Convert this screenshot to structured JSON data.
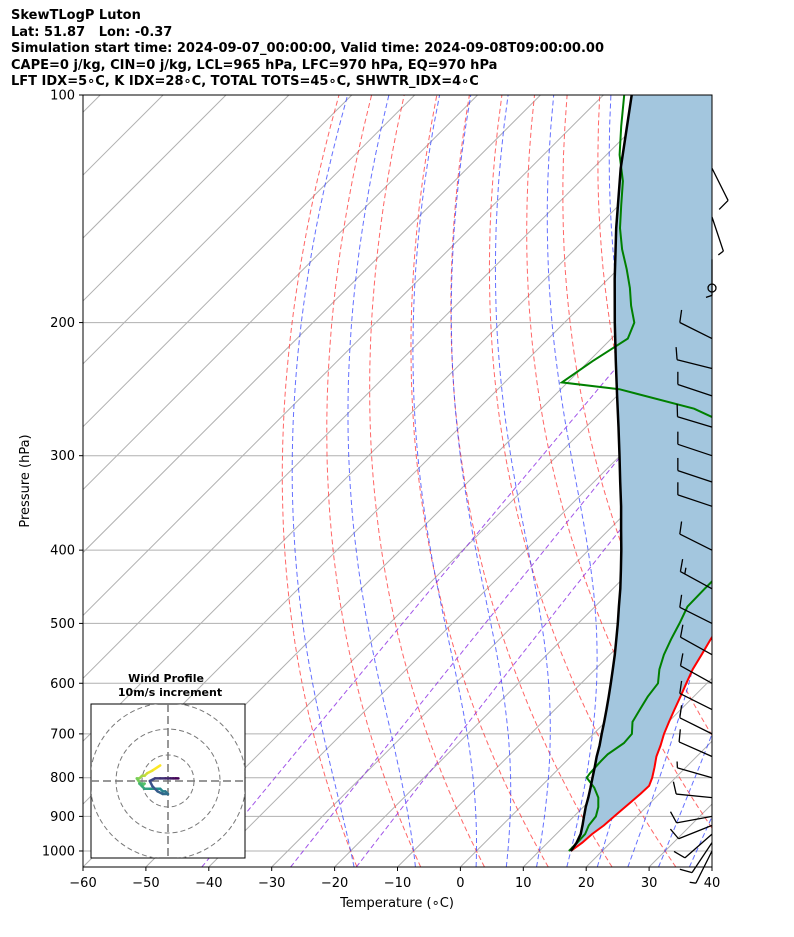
{
  "header": {
    "line1": "SkewTLogP Luton",
    "line2": "Lat: 51.87   Lon: -0.37",
    "line3": "Simulation start time: 2024-09-07_00:00:00, Valid time: 2024-09-08T09:00:00.00",
    "line4": "CAPE=0 j/kg, CIN=0 j/kg, LCL=965 hPa, LFC=970 hPa, EQ=970 hPa",
    "line5": "LFT IDX=5∘C, K IDX=28∘C, TOTAL TOTS=45∘C, SHWTR_IDX=4∘C"
  },
  "colors": {
    "temperature": "#ff0000",
    "dewpoint": "#008000",
    "parcel": "#000000",
    "cape_fill": "#a3c6de",
    "dry_adiabat": "#ff4040",
    "moist_adiabat": "#3040ff",
    "mixing_ratio": "#8a2be2",
    "isotherm": "#b0b0b0",
    "isobar": "#b0b0b0"
  },
  "chart_data": {
    "type": "skewt",
    "xlabel": "Temperature (∘C)",
    "ylabel": "Pressure (hPa)",
    "xlim": [
      -60,
      40
    ],
    "ylim": [
      1050,
      100
    ],
    "y_scale": "log",
    "x_ticks": [
      "−60",
      "−50",
      "−40",
      "−30",
      "−20",
      "−10",
      "0",
      "10",
      "20",
      "30",
      "40"
    ],
    "x_tick_values": [
      -60,
      -50,
      -40,
      -30,
      -20,
      -10,
      0,
      10,
      20,
      30,
      40
    ],
    "y_ticks": [
      "100",
      "200",
      "300",
      "400",
      "500",
      "600",
      "700",
      "800",
      "900",
      "1000"
    ],
    "y_tick_values": [
      100,
      200,
      300,
      400,
      500,
      600,
      700,
      800,
      900,
      1000
    ],
    "grid": true,
    "temperature": [
      [
        1000,
        15
      ],
      [
        975,
        15.5
      ],
      [
        950,
        15.7
      ],
      [
        925,
        16.2
      ],
      [
        900,
        16.4
      ],
      [
        880,
        16.6
      ],
      [
        860,
        16.8
      ],
      [
        840,
        17
      ],
      [
        820,
        17.1
      ],
      [
        800,
        16.3
      ],
      [
        775,
        15
      ],
      [
        750,
        13.6
      ],
      [
        725,
        12.5
      ],
      [
        700,
        11.2
      ],
      [
        675,
        10.1
      ],
      [
        650,
        9
      ],
      [
        625,
        7.9
      ],
      [
        600,
        6.7
      ],
      [
        575,
        5.5
      ],
      [
        550,
        4.6
      ],
      [
        525,
        3.6
      ],
      [
        500,
        2.7
      ],
      [
        475,
        1.3
      ],
      [
        450,
        -0.4
      ],
      [
        425,
        -2.2
      ],
      [
        400,
        -3.7
      ],
      [
        375,
        -6.6
      ],
      [
        350,
        -9.1
      ],
      [
        325,
        -11.6
      ],
      [
        310,
        -14.1
      ],
      [
        300,
        -15.4
      ],
      [
        290,
        -15.6
      ],
      [
        285,
        -15.6
      ],
      [
        275,
        -14.3
      ],
      [
        265,
        -13.5
      ],
      [
        250,
        -14.7
      ],
      [
        235,
        -14.5
      ],
      [
        225,
        -15.4
      ],
      [
        210,
        -13.9
      ],
      [
        200,
        -14.3
      ],
      [
        190,
        -14.8
      ],
      [
        180,
        -15.5
      ],
      [
        170,
        -16.5
      ],
      [
        160,
        -18.5
      ],
      [
        150,
        -21.2
      ],
      [
        140,
        -23.7
      ],
      [
        130,
        -26.3
      ],
      [
        120,
        -27.5
      ],
      [
        110,
        -30.4
      ],
      [
        105,
        -30.9
      ],
      [
        100,
        -33
      ]
    ],
    "dewpoint": [
      [
        1000,
        14.7
      ],
      [
        975,
        14.7
      ],
      [
        950,
        14.6
      ],
      [
        925,
        13.8
      ],
      [
        900,
        13.5
      ],
      [
        875,
        12.4
      ],
      [
        850,
        10.9
      ],
      [
        825,
        8.7
      ],
      [
        800,
        5.9
      ],
      [
        790,
        5.7
      ],
      [
        775,
        5.6
      ],
      [
        760,
        5.5
      ],
      [
        745,
        5.5
      ],
      [
        720,
        6.3
      ],
      [
        700,
        6.1
      ],
      [
        675,
        4.3
      ],
      [
        650,
        3.5
      ],
      [
        625,
        2.7
      ],
      [
        600,
        2.2
      ],
      [
        575,
        0.2
      ],
      [
        550,
        -1.4
      ],
      [
        525,
        -2.7
      ],
      [
        500,
        -3.9
      ],
      [
        475,
        -5.3
      ],
      [
        450,
        -5.4
      ],
      [
        435,
        -5.4
      ],
      [
        420,
        -6.9
      ],
      [
        400,
        -9.1
      ],
      [
        375,
        -12.1
      ],
      [
        350,
        -14.8
      ],
      [
        330,
        -16.5
      ],
      [
        310,
        -18.8
      ],
      [
        295,
        -20.7
      ],
      [
        275,
        -26.5
      ],
      [
        260,
        -35.7
      ],
      [
        245,
        -50.7
      ],
      [
        240,
        -60.9
      ],
      [
        225,
        -59.4
      ],
      [
        210,
        -57.4
      ],
      [
        200,
        -58.9
      ],
      [
        190,
        -62.1
      ],
      [
        180,
        -65.1
      ],
      [
        170,
        -68.6
      ],
      [
        160,
        -72.5
      ],
      [
        150,
        -76.2
      ],
      [
        140,
        -79.6
      ],
      [
        130,
        -83.2
      ],
      [
        120,
        -87.9
      ],
      [
        110,
        -92.2
      ],
      [
        100,
        -96.7
      ]
    ],
    "parcel": [
      [
        1000,
        15
      ],
      [
        975,
        14.6
      ],
      [
        950,
        13.9
      ],
      [
        925,
        12.8
      ],
      [
        900,
        11.6
      ],
      [
        875,
        10.4
      ],
      [
        850,
        9.3
      ],
      [
        825,
        8.1
      ],
      [
        800,
        6.8
      ],
      [
        775,
        5.5
      ],
      [
        750,
        4.1
      ],
      [
        725,
        2.8
      ],
      [
        700,
        1.3
      ],
      [
        675,
        -0.2
      ],
      [
        650,
        -1.8
      ],
      [
        625,
        -3.5
      ],
      [
        600,
        -5.3
      ],
      [
        575,
        -7.2
      ],
      [
        550,
        -9.2
      ],
      [
        525,
        -11.4
      ],
      [
        500,
        -13.7
      ],
      [
        475,
        -16.2
      ],
      [
        450,
        -18.8
      ],
      [
        425,
        -21.7
      ],
      [
        400,
        -24.8
      ],
      [
        375,
        -28.2
      ],
      [
        350,
        -31.8
      ],
      [
        325,
        -35.8
      ],
      [
        300,
        -40.1
      ],
      [
        275,
        -44.8
      ],
      [
        250,
        -50
      ],
      [
        225,
        -55.7
      ],
      [
        200,
        -62
      ],
      [
        175,
        -69
      ],
      [
        150,
        -76.8
      ],
      [
        125,
        -85.6
      ],
      [
        100,
        -95.5
      ]
    ],
    "dry_adiabats_theta_c": [
      -20,
      -10,
      0,
      10,
      20,
      30,
      40,
      50,
      60,
      70,
      80,
      90,
      100,
      110
    ],
    "moist_adiabats_start_c": [
      -20,
      -10,
      0,
      5,
      10,
      15,
      20,
      25,
      30,
      35,
      40
    ],
    "mixing_ratios_gkg": [
      0.1,
      0.4,
      1
    ],
    "wind_barbs": [
      {
        "p": 1000,
        "u": 3,
        "v": 6
      },
      {
        "p": 975,
        "u": 6,
        "v": 9
      },
      {
        "p": 950,
        "u": 8,
        "v": 7
      },
      {
        "p": 925,
        "u": 10,
        "v": 4
      },
      {
        "p": 900,
        "u": 11,
        "v": 2
      },
      {
        "p": 850,
        "u": 10,
        "v": -1
      },
      {
        "p": 800,
        "u": 7,
        "v": -2
      },
      {
        "p": 750,
        "u": 9,
        "v": -4
      },
      {
        "p": 700,
        "u": 10,
        "v": -5
      },
      {
        "p": 650,
        "u": 10,
        "v": -5
      },
      {
        "p": 600,
        "u": 9,
        "v": -5
      },
      {
        "p": 550,
        "u": 9,
        "v": -5
      },
      {
        "p": 500,
        "u": 10,
        "v": -5
      },
      {
        "p": 450,
        "u": 11,
        "v": -6
      },
      {
        "p": 400,
        "u": 10,
        "v": -5
      },
      {
        "p": 350,
        "u": 9,
        "v": -3
      },
      {
        "p": 325,
        "u": 9,
        "v": -3
      },
      {
        "p": 300,
        "u": 9,
        "v": -3
      },
      {
        "p": 275,
        "u": 10,
        "v": -3
      },
      {
        "p": 250,
        "u": 9,
        "v": -3
      },
      {
        "p": 230,
        "u": 8,
        "v": -2
      },
      {
        "p": 210,
        "u": 8,
        "v": -4
      },
      {
        "p": 180,
        "u": 0,
        "v": 0
      },
      {
        "p": 165,
        "u": 0,
        "v": 4
      },
      {
        "p": 145,
        "u": -2,
        "v": 6
      },
      {
        "p": 125,
        "u": -4,
        "v": 8
      }
    ],
    "hodograph": {
      "title": "Wind Profile",
      "subtitle": "10m/s increment",
      "points": [
        [
          -3,
          6
        ],
        [
          -6,
          4
        ],
        [
          -8,
          3
        ],
        [
          -9,
          2
        ],
        [
          -10,
          2
        ],
        [
          -11,
          1
        ],
        [
          -12,
          1
        ],
        [
          -10,
          -2
        ],
        [
          -9,
          -1
        ],
        [
          -10,
          -1
        ],
        [
          -11,
          -1
        ],
        [
          -10,
          -2
        ],
        [
          -9,
          -3
        ],
        [
          -7,
          -3
        ],
        [
          -5,
          -3
        ],
        [
          -3,
          -3
        ],
        [
          -2,
          -4
        ],
        [
          -1,
          -4
        ],
        [
          0,
          -5
        ],
        [
          -2,
          -5
        ],
        [
          -4,
          -4
        ],
        [
          -6,
          -2
        ],
        [
          -7,
          0
        ],
        [
          -5,
          1
        ],
        [
          -3,
          1
        ],
        [
          -1,
          1
        ],
        [
          1,
          1
        ],
        [
          2,
          1
        ],
        [
          3,
          1
        ],
        [
          4,
          1
        ]
      ]
    }
  }
}
